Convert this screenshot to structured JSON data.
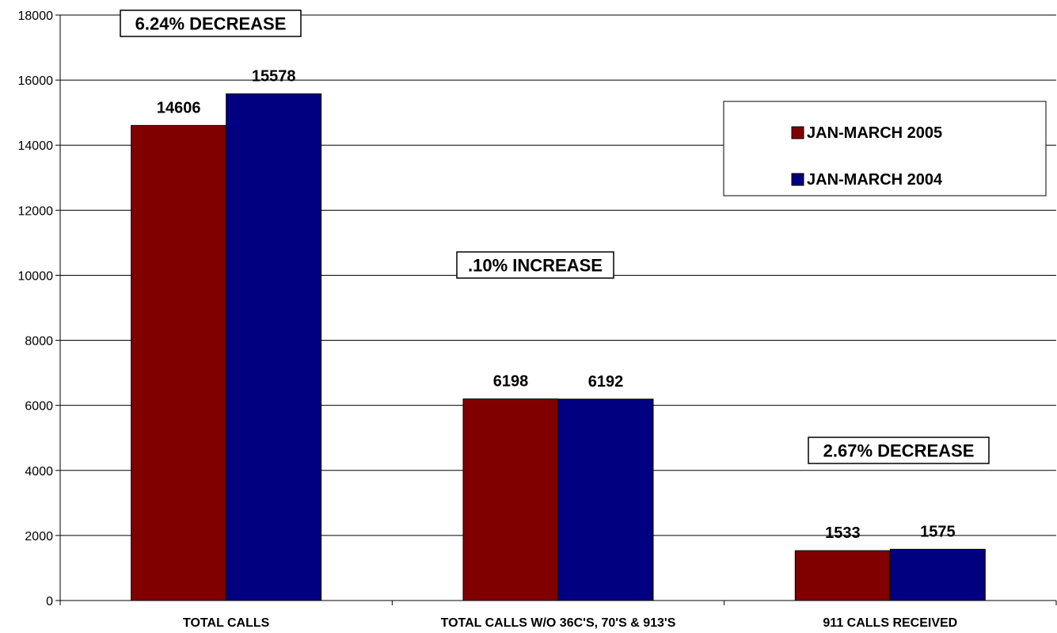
{
  "chart_data": {
    "type": "bar",
    "title": "",
    "xlabel": "",
    "ylabel": "",
    "ylim": [
      0,
      18000
    ],
    "yticks": [
      0,
      2000,
      4000,
      6000,
      8000,
      10000,
      12000,
      14000,
      16000,
      18000
    ],
    "grid": true,
    "legend_position": "top-right",
    "categories": [
      "TOTAL CALLS",
      "TOTAL CALLS W/O 36C'S, 70'S & 913'S",
      "911 CALLS RECEIVED"
    ],
    "series": [
      {
        "name": "JAN-MARCH 2005",
        "color": "#800000",
        "values": [
          14606,
          6198,
          1533
        ]
      },
      {
        "name": "JAN-MARCH 2004",
        "color": "#000080",
        "values": [
          15578,
          6192,
          1575
        ]
      }
    ],
    "data_labels": [
      [
        "14606",
        "6198",
        "1533"
      ],
      [
        "15578",
        "6192",
        "1575"
      ]
    ],
    "annotations": [
      {
        "text": "6.24% DECREASE",
        "category": 0
      },
      {
        "text": ".10% INCREASE",
        "category": 1
      },
      {
        "text": "2.67% DECREASE",
        "category": 2
      }
    ]
  }
}
